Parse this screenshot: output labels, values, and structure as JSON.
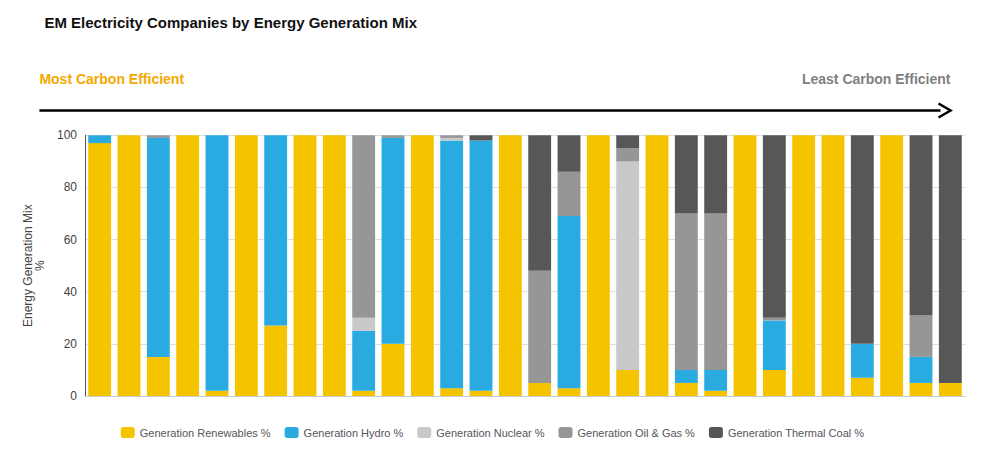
{
  "chart_data": {
    "type": "bar",
    "title": "EM Electricity Companies by Energy Generation Mix",
    "ylabel": "Energy Generation Mix\n%",
    "annotations": [
      {
        "text": "Most Carbon Efficient",
        "color": "#F5A800"
      },
      {
        "text": "Least Carbon Efficient",
        "color": "#808080"
      }
    ],
    "categories": [
      null,
      null,
      null,
      null,
      null,
      null,
      null,
      null,
      null,
      null,
      null,
      null,
      null,
      null,
      null,
      null,
      null,
      null,
      null,
      null,
      null,
      null,
      null,
      null,
      null,
      null,
      null,
      null,
      null,
      null
    ],
    "series": [
      {
        "name": "Generation Renewables %",
        "color": "#F5C400",
        "values": [
          97,
          100,
          15,
          100,
          2,
          100,
          27,
          100,
          100,
          2,
          20,
          100,
          3,
          2,
          100,
          5,
          3,
          100,
          10,
          100,
          5,
          2,
          100,
          10,
          100,
          100,
          7,
          100,
          5,
          5
        ]
      },
      {
        "name": "Generation Hydro %",
        "color": "#29ABE2",
        "values": [
          3,
          0,
          84,
          0,
          98,
          0,
          73,
          0,
          0,
          23,
          79,
          0,
          95,
          96,
          0,
          0,
          66,
          0,
          0,
          0,
          5,
          8,
          0,
          19,
          0,
          0,
          13,
          0,
          10,
          0
        ]
      },
      {
        "name": "Generation Nuclear %",
        "color": "#C8C8C8",
        "values": [
          0,
          0,
          0,
          0,
          0,
          0,
          0,
          0,
          0,
          5,
          0,
          0,
          1,
          0,
          0,
          0,
          0,
          0,
          80,
          0,
          0,
          0,
          0,
          0,
          0,
          0,
          0,
          0,
          0,
          0
        ]
      },
      {
        "name": "Generation Oil & Gas %",
        "color": "#969696",
        "values": [
          0,
          0,
          1,
          0,
          0,
          0,
          0,
          0,
          0,
          70,
          1,
          0,
          1,
          0,
          0,
          43,
          17,
          0,
          5,
          0,
          60,
          60,
          0,
          1,
          0,
          0,
          0,
          0,
          16,
          0
        ]
      },
      {
        "name": "Generation Thermal Coal %",
        "color": "#575757",
        "values": [
          0,
          0,
          0,
          0,
          0,
          0,
          0,
          0,
          0,
          0,
          0,
          0,
          0,
          2,
          0,
          52,
          14,
          0,
          5,
          0,
          30,
          30,
          0,
          70,
          0,
          0,
          80,
          0,
          69,
          95
        ]
      }
    ],
    "stacked": true,
    "ylim": [
      0,
      100
    ],
    "yticks": [
      0,
      20,
      40,
      60,
      80,
      100
    ],
    "grid": true,
    "legend": "bottom",
    "tick_labels": "y"
  }
}
